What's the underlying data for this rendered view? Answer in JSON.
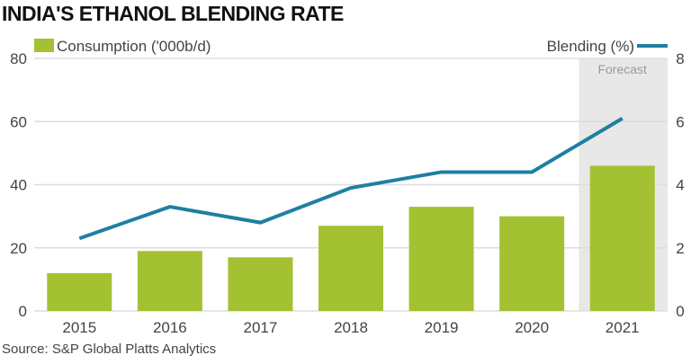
{
  "chart_data": {
    "type": "bar+line",
    "title": "INDIA'S ETHANOL BLENDING RATE",
    "source": "Source: S&P Global Platts Analytics",
    "categories": [
      "2015",
      "2016",
      "2017",
      "2018",
      "2019",
      "2020",
      "2021"
    ],
    "series": [
      {
        "name": "Consumption ('000b/d)",
        "type": "bar",
        "axis": "left",
        "color": "#a4c132",
        "values": [
          12,
          19,
          17,
          27,
          33,
          30,
          46
        ]
      },
      {
        "name": "Blending (%)",
        "type": "line",
        "axis": "right",
        "color": "#1e7fa3",
        "values": [
          2.3,
          3.3,
          2.8,
          3.9,
          4.4,
          4.4,
          6.1
        ]
      }
    ],
    "left_axis": {
      "ylim": [
        0,
        80
      ],
      "ticks": [
        "0",
        "20",
        "40",
        "60",
        "80"
      ]
    },
    "right_axis": {
      "ylim": [
        0,
        8
      ],
      "ticks": [
        "0",
        "2",
        "4",
        "6",
        "8"
      ]
    },
    "annotation": {
      "label": "Forecast",
      "category": "2021",
      "shade_color": "#e8e8e8"
    },
    "grid": true,
    "legend_placement": "top"
  }
}
